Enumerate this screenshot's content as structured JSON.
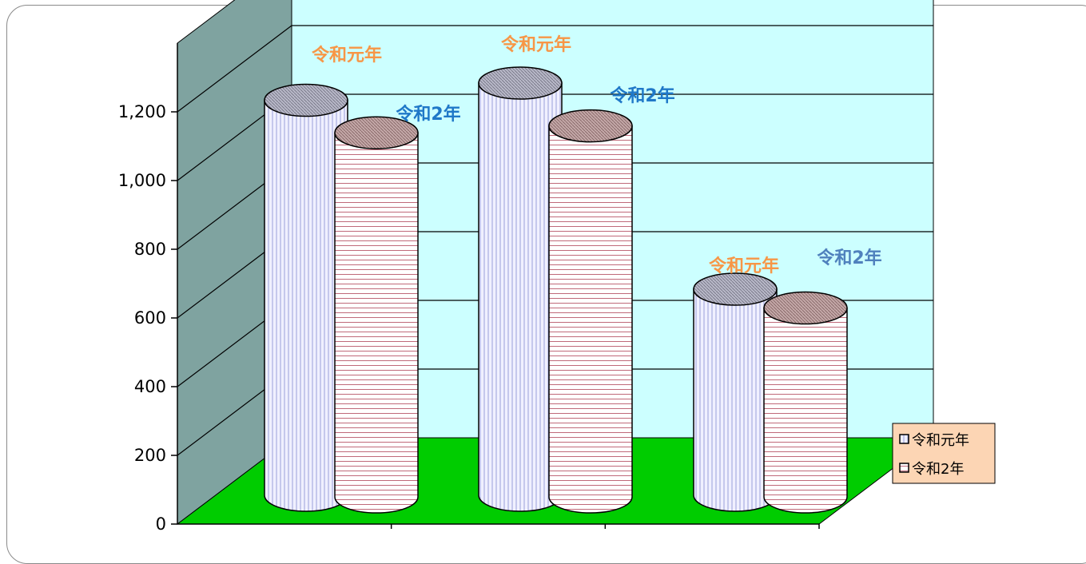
{
  "chart_data": {
    "type": "bar",
    "title": "",
    "xlabel": "",
    "ylabel": "",
    "categories": [
      "",
      "",
      ""
    ],
    "ylim": [
      0,
      1200
    ],
    "yticks": [
      0,
      200,
      400,
      600,
      800,
      1000,
      1200
    ],
    "ytick_labels": [
      "0",
      "200",
      "400",
      "600",
      "800",
      "1,000",
      "1,200"
    ],
    "grid": true,
    "legend_position": "right",
    "series": [
      {
        "name": "令和元年",
        "values": [
          1150,
          1200,
          600
        ],
        "label_color": "#f79646"
      },
      {
        "name": "令和2年",
        "values": [
          1060,
          1080,
          550
        ],
        "label_color": "#1f78c8"
      }
    ],
    "colors": {
      "back_wall": "#ccffff",
      "side_wall": "#7fa3a0",
      "floor": "#00cc00",
      "legend_bg": "#fcd5b4",
      "series1_fill": "#eeeeff",
      "series1_line": "#9aa0d8",
      "series2_fill": "#ffffff",
      "series2_line": "#c06a7a"
    }
  }
}
